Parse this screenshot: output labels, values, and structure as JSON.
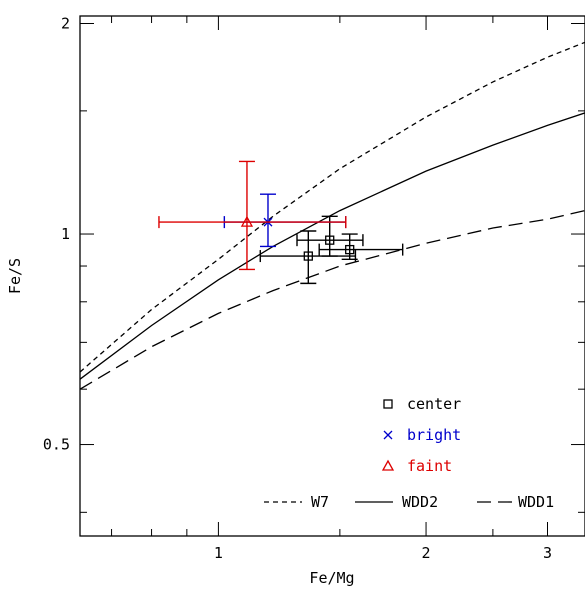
{
  "chart_data": {
    "type": "scatter",
    "xlabel": "Fe/Mg",
    "ylabel": "Fe/S",
    "x_scale": "log",
    "y_scale": "log",
    "xlim": [
      0.63,
      3.4
    ],
    "ylim": [
      0.37,
      2.05
    ],
    "x_ticks": [
      {
        "value": 1,
        "label": "1"
      },
      {
        "value": 2,
        "label": "2"
      },
      {
        "value": 3,
        "label": "3"
      }
    ],
    "y_ticks": [
      {
        "value": 0.5,
        "label": "0.5"
      },
      {
        "value": 1,
        "label": "1"
      },
      {
        "value": 2,
        "label": "2"
      }
    ],
    "grid": false,
    "series": [
      {
        "name": "center",
        "marker": "square",
        "color": "#000000",
        "points": [
          {
            "x": 1.35,
            "y": 0.93,
            "xerr": [
              1.15,
              1.58
            ],
            "yerr": [
              0.85,
              1.01
            ]
          },
          {
            "x": 1.45,
            "y": 0.98,
            "xerr": [
              1.3,
              1.62
            ],
            "yerr": [
              0.93,
              1.06
            ]
          },
          {
            "x": 1.55,
            "y": 0.95,
            "xerr": [
              1.4,
              1.85
            ],
            "yerr": [
              0.92,
              1.0
            ]
          }
        ]
      },
      {
        "name": "bright",
        "marker": "x",
        "color": "#0000cc",
        "points": [
          {
            "x": 1.18,
            "y": 1.04,
            "xerr": [
              1.02,
              1.53
            ],
            "yerr": [
              0.96,
              1.14
            ]
          }
        ]
      },
      {
        "name": "faint",
        "marker": "triangle",
        "color": "#dd0000",
        "points": [
          {
            "x": 1.1,
            "y": 1.04,
            "xerr": [
              0.82,
              1.53
            ],
            "yerr": [
              0.89,
              1.27
            ]
          }
        ]
      }
    ],
    "model_lines": [
      {
        "name": "W7",
        "dash": "5,4",
        "points": [
          [
            0.63,
            0.635
          ],
          [
            0.8,
            0.78
          ],
          [
            1.0,
            0.92
          ],
          [
            1.2,
            1.06
          ],
          [
            1.5,
            1.24
          ],
          [
            2.0,
            1.47
          ],
          [
            2.5,
            1.65
          ],
          [
            3.0,
            1.79
          ],
          [
            3.4,
            1.88
          ]
        ]
      },
      {
        "name": "WDD2",
        "dash": "",
        "points": [
          [
            0.63,
            0.62
          ],
          [
            0.8,
            0.74
          ],
          [
            1.0,
            0.86
          ],
          [
            1.2,
            0.96
          ],
          [
            1.5,
            1.08
          ],
          [
            2.0,
            1.23
          ],
          [
            2.5,
            1.34
          ],
          [
            3.0,
            1.43
          ],
          [
            3.4,
            1.49
          ]
        ]
      },
      {
        "name": "WDD1",
        "dash": "14,7",
        "points": [
          [
            0.63,
            0.6
          ],
          [
            0.8,
            0.69
          ],
          [
            1.0,
            0.77
          ],
          [
            1.2,
            0.83
          ],
          [
            1.5,
            0.9
          ],
          [
            2.0,
            0.97
          ],
          [
            2.5,
            1.02
          ],
          [
            3.0,
            1.05
          ],
          [
            3.4,
            1.08
          ]
        ]
      }
    ],
    "legend": {
      "markers": [
        {
          "label": "center",
          "color": "#000000",
          "marker": "square"
        },
        {
          "label": "bright",
          "color": "#0000cc",
          "marker": "x"
        },
        {
          "label": "faint",
          "color": "#dd0000",
          "marker": "triangle"
        }
      ],
      "lines": [
        {
          "label": "W7",
          "dash": "5,4"
        },
        {
          "label": "WDD2",
          "dash": ""
        },
        {
          "label": "WDD1",
          "dash": "14,7"
        }
      ],
      "placement": "bottom-right"
    }
  }
}
